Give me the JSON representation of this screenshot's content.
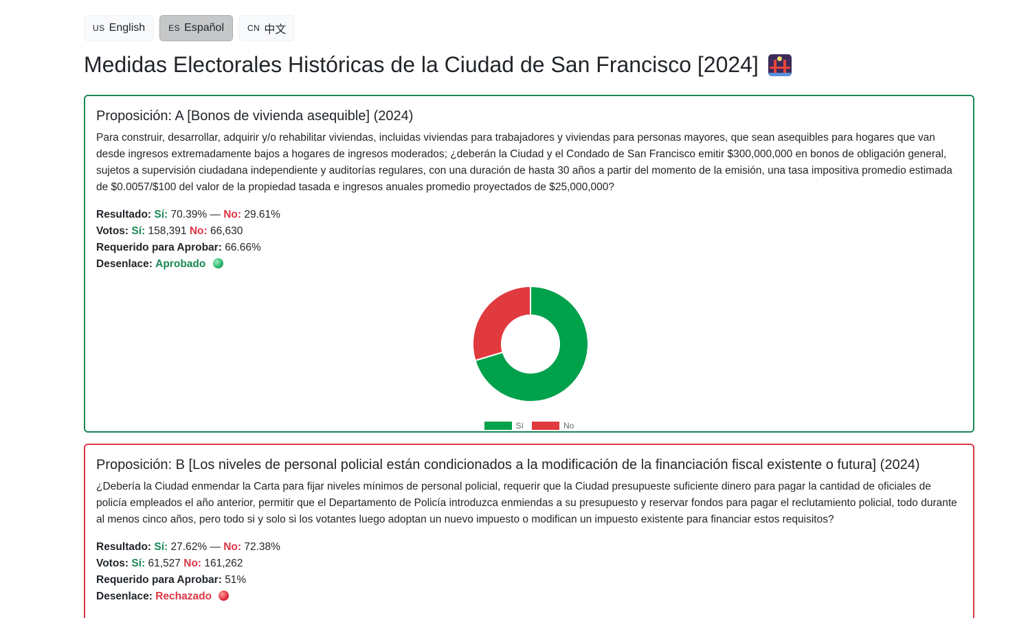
{
  "languages": [
    {
      "code": "US",
      "label": "English"
    },
    {
      "code": "ES",
      "label": "Español"
    },
    {
      "code": "CN",
      "label": "中文"
    }
  ],
  "active_language": "ES",
  "page_title": "Medidas Electorales Históricas de la Ciudad de San Francisco [2024]",
  "title_icon": "bridge-at-night-icon",
  "labels": {
    "result": "Resultado:",
    "votes": "Votos:",
    "yes": "Sí:",
    "no": "No:",
    "dash": "—",
    "required": "Requerido para Aprobar:",
    "outcome": "Desenlace:"
  },
  "colors": {
    "yes": "#00a14b",
    "no": "#e0393e",
    "pass_border": "#198754",
    "fail_border": "#dc3545"
  },
  "measures": [
    {
      "title": "Proposición: A [Bonos de vivienda asequible] (2024)",
      "description": "Para construir, desarrollar, adquirir y/o rehabilitar viviendas, incluidas viviendas para trabajadores y viviendas para personas mayores, que sean asequibles para hogares que van desde ingresos extremadamente bajos a hogares de ingresos moderados; ¿deberán la Ciudad y el Condado de San Francisco emitir $300,000,000 en bonos de obligación general, sujetos a supervisión ciudadana independiente y auditorías regulares, con una duración de hasta 30 años a partir del momento de la emisión, una tasa impositiva promedio estimada de $0.0057/$100 del valor de la propiedad tasada e ingresos anuales promedio proyectados de $25,000,000?",
      "yes_pct": "70.39%",
      "no_pct": "29.61%",
      "yes_votes": "158,391",
      "no_votes": "66,630",
      "required": "66.66%",
      "outcome": "Aprobado",
      "outcome_icon": "green-circle-icon"
    },
    {
      "title": "Proposición: B [Los niveles de personal policial están condicionados a la modificación de la financiación fiscal existente o futura] (2024)",
      "description": "¿Debería la Ciudad enmendar la Carta para fijar niveles mínimos de personal policial, requerir que la Ciudad presupueste suficiente dinero para pagar la cantidad de oficiales de policía empleados el año anterior, permitir que el Departamento de Policía introduzca enmiendas a su presupuesto y reservar fondos para pagar el reclutamiento policial, todo durante al menos cinco años, pero todo si y solo si los votantes luego adoptan un nuevo impuesto o modifican un impuesto existente para financiar estos requisitos?",
      "yes_pct": "27.62%",
      "no_pct": "72.38%",
      "yes_votes": "61,527",
      "no_votes": "161,262",
      "required": "51%",
      "outcome": "Rechazado",
      "outcome_icon": "red-circle-icon"
    }
  ],
  "chart_data": {
    "type": "pie",
    "variant": "doughnut",
    "categories": [
      "Sí",
      "No"
    ],
    "values": [
      158391,
      66630
    ],
    "colors": [
      "#00a14b",
      "#e0393e"
    ],
    "legend": "bottom"
  }
}
